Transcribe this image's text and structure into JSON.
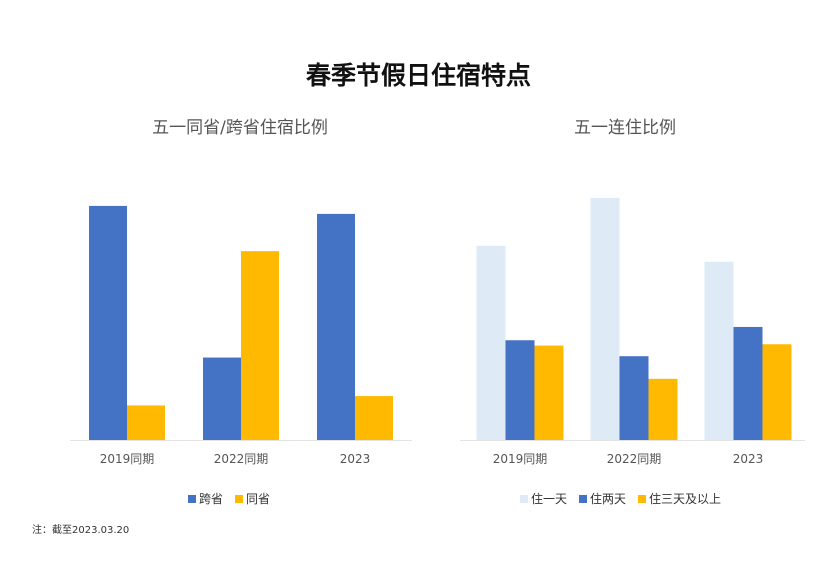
{
  "title": "春季节假日住宿特点",
  "note": "注：截至2023.03.20",
  "chart_data": [
    {
      "type": "bar",
      "title": "五一同省/跨省住宿比例",
      "categories": [
        "2019同期",
        "2022同期",
        "2023"
      ],
      "series": [
        {
          "name": "跨省",
          "color": "#4472C4",
          "values": [
            0.88,
            0.31,
            0.85
          ]
        },
        {
          "name": "同省",
          "color": "#FFB900",
          "values": [
            0.13,
            0.71,
            0.165
          ]
        }
      ],
      "ylim": [
        0,
        1
      ],
      "grid": false,
      "legend": "bottom"
    },
    {
      "type": "bar",
      "title": "五一连住比例",
      "categories": [
        "2019同期",
        "2022同期",
        "2023"
      ],
      "series": [
        {
          "name": "住一天",
          "color": "#DEEBF7",
          "values": [
            0.73,
            0.91,
            0.67
          ]
        },
        {
          "name": "住两天",
          "color": "#4472C4",
          "values": [
            0.375,
            0.315,
            0.425
          ]
        },
        {
          "name": "住三天及以上",
          "color": "#FFB900",
          "values": [
            0.355,
            0.23,
            0.36
          ]
        }
      ],
      "ylim": [
        0,
        1
      ],
      "grid": false,
      "legend": "bottom"
    }
  ]
}
